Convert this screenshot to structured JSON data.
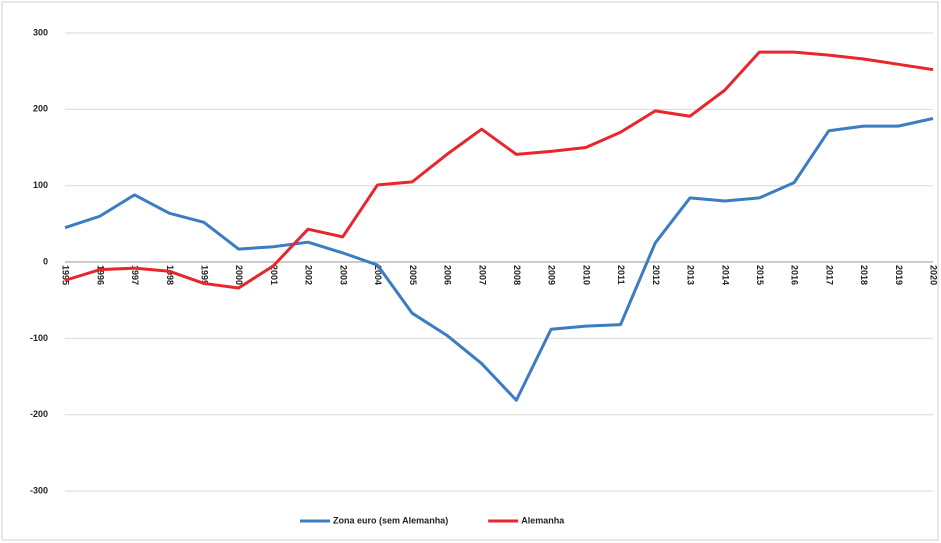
{
  "chart_data": {
    "type": "line",
    "categories": [
      "1995",
      "1996",
      "1997",
      "1998",
      "1999",
      "2000",
      "2001",
      "2002",
      "2003",
      "2004",
      "2005",
      "2006",
      "2007",
      "2008",
      "2009",
      "2010",
      "2011",
      "2012",
      "2013",
      "2014",
      "2015",
      "2016",
      "2017",
      "2018",
      "2019",
      "2020"
    ],
    "series": [
      {
        "name": "Zona euro (sem Alemanha)",
        "color": "#3c7cc4",
        "values": [
          45,
          60,
          88,
          64,
          52,
          17,
          20,
          26,
          12,
          -4,
          -67,
          -96,
          -133,
          -181,
          -88,
          -84,
          -82,
          25,
          84,
          80,
          84,
          104,
          172,
          178,
          178,
          188
        ]
      },
      {
        "name": "Alemanha",
        "color": "#e8262d",
        "values": [
          -24,
          -10,
          -8,
          -12,
          -28,
          -34,
          -5,
          43,
          33,
          101,
          105,
          141,
          174,
          141,
          145,
          150,
          170,
          198,
          191,
          225,
          275,
          275,
          271,
          266,
          259,
          252
        ]
      }
    ],
    "ylim": [
      -330,
      300
    ],
    "yticks": [
      -300,
      -200,
      -100,
      0,
      100,
      200,
      300
    ],
    "grid": true,
    "legend": "bottom"
  }
}
